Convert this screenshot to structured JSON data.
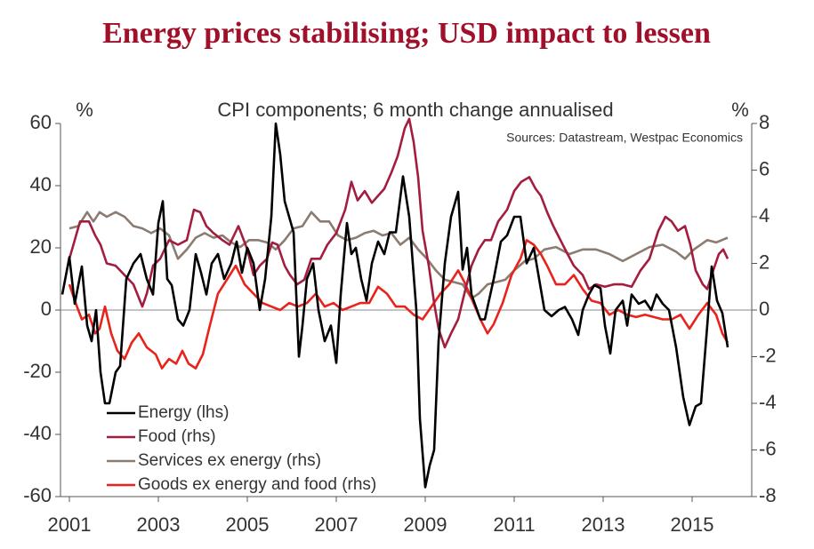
{
  "chart_data": {
    "type": "line",
    "title": "Energy prices stabilising; USD impact to lessen",
    "subtitle": "CPI components; 6 month change annualised",
    "y_label": "%",
    "y2_label": "%",
    "source": "Sources: Datastream, Westpac Economics",
    "xlim": [
      2000.8,
      2016.34
    ],
    "xticks": [
      2001,
      2003,
      2005,
      2007,
      2009,
      2011,
      2013,
      2015
    ],
    "ylim": [
      -60,
      60
    ],
    "yticks": [
      -60,
      -40,
      -20,
      0,
      20,
      40,
      60
    ],
    "y2lim": [
      -8,
      8
    ],
    "y2ticks": [
      -8,
      -6,
      -4,
      -2,
      0,
      2,
      4,
      6,
      8
    ],
    "legend": "lower left",
    "series": [
      {
        "name": "Energy (lhs)",
        "color": "#000000",
        "axis": "y",
        "x": [
          2000.84,
          2001,
          2001.12,
          2001.28,
          2001.4,
          2001.5,
          2001.6,
          2001.7,
          2001.8,
          2001.9,
          2002.04,
          2002.14,
          2002.28,
          2002.44,
          2002.6,
          2002.74,
          2002.88,
          2003,
          2003.1,
          2003.2,
          2003.3,
          2003.44,
          2003.56,
          2003.7,
          2003.84,
          2003.96,
          2004.08,
          2004.2,
          2004.34,
          2004.48,
          2004.64,
          2004.76,
          2004.88,
          2005,
          2005.14,
          2005.28,
          2005.4,
          2005.54,
          2005.64,
          2005.74,
          2005.84,
          2005.94,
          2006.04,
          2006.16,
          2006.24,
          2006.34,
          2006.48,
          2006.6,
          2006.74,
          2006.88,
          2007,
          2007.1,
          2007.24,
          2007.34,
          2007.44,
          2007.56,
          2007.68,
          2007.8,
          2007.94,
          2008.08,
          2008.2,
          2008.34,
          2008.5,
          2008.64,
          2008.8,
          2008.88,
          2009,
          2009.1,
          2009.2,
          2009.3,
          2009.44,
          2009.58,
          2009.74,
          2009.84,
          2009.94,
          2010.04,
          2010.24,
          2010.34,
          2010.54,
          2010.7,
          2010.84,
          2011,
          2011.14,
          2011.28,
          2011.44,
          2011.56,
          2011.68,
          2011.84,
          2012,
          2012.14,
          2012.3,
          2012.44,
          2012.54,
          2012.68,
          2012.8,
          2012.94,
          2013.04,
          2013.16,
          2013.28,
          2013.44,
          2013.54,
          2013.64,
          2013.8,
          2013.94,
          2014.08,
          2014.2,
          2014.34,
          2014.48,
          2014.64,
          2014.8,
          2014.94,
          2015.08,
          2015.2,
          2015.34,
          2015.44,
          2015.56,
          2015.68,
          2015.8
        ],
        "values": [
          5,
          17,
          2,
          14,
          -5,
          -10,
          0,
          -20,
          -30,
          -30,
          -20,
          -18,
          10,
          15,
          18,
          10,
          5,
          28,
          35,
          10,
          8,
          -3,
          -5,
          0,
          18,
          12,
          5,
          15,
          18,
          10,
          15,
          22,
          12,
          20,
          15,
          0,
          10,
          30,
          60,
          50,
          35,
          30,
          25,
          -15,
          -5,
          10,
          15,
          0,
          -10,
          -5,
          -17,
          5,
          28,
          18,
          20,
          10,
          3,
          15,
          22,
          18,
          25,
          25,
          43,
          30,
          0,
          -35,
          -57,
          -50,
          -45,
          -10,
          15,
          30,
          38,
          13,
          20,
          5,
          -3,
          -3,
          10,
          22,
          24,
          30,
          30,
          15,
          20,
          10,
          0,
          -2,
          0,
          1,
          -3,
          -8,
          0,
          5,
          8,
          7,
          -5,
          -14,
          0,
          3,
          -5,
          5,
          2,
          3,
          0,
          5,
          2,
          0,
          -12,
          -28,
          -37,
          -31,
          -30,
          -5,
          14,
          3,
          -1,
          -12
        ]
      },
      {
        "name": "Food (rhs)",
        "color": "#a31d3f",
        "axis": "y2",
        "x": [
          2001,
          2001.24,
          2001.44,
          2001.58,
          2001.7,
          2001.84,
          2002.04,
          2002.24,
          2002.44,
          2002.64,
          2002.74,
          2002.88,
          2003.04,
          2003.24,
          2003.44,
          2003.64,
          2003.8,
          2003.94,
          2004.08,
          2004.24,
          2004.44,
          2004.6,
          2004.8,
          2005,
          2005.14,
          2005.28,
          2005.44,
          2005.56,
          2005.68,
          2005.84,
          2005.96,
          2006.12,
          2006.28,
          2006.44,
          2006.64,
          2006.8,
          2007,
          2007.2,
          2007.34,
          2007.48,
          2007.64,
          2007.8,
          2007.94,
          2008.08,
          2008.24,
          2008.38,
          2008.54,
          2008.64,
          2008.74,
          2008.84,
          2008.94,
          2009.08,
          2009.2,
          2009.3,
          2009.44,
          2009.58,
          2009.74,
          2009.88,
          2010.04,
          2010.2,
          2010.34,
          2010.48,
          2010.64,
          2010.84,
          2011,
          2011.16,
          2011.34,
          2011.48,
          2011.6,
          2011.74,
          2011.88,
          2012.04,
          2012.2,
          2012.34,
          2012.54,
          2012.68,
          2012.84,
          2013.04,
          2013.24,
          2013.44,
          2013.64,
          2013.84,
          2014.04,
          2014.24,
          2014.4,
          2014.54,
          2014.68,
          2014.84,
          2014.96,
          2015.08,
          2015.24,
          2015.34,
          2015.44,
          2015.6,
          2015.7,
          2015.8
        ],
        "values": [
          2.2,
          3.8,
          3.8,
          3.2,
          2.8,
          2.0,
          1.9,
          1.5,
          1.1,
          0.15,
          0.7,
          1.9,
          2.2,
          3.0,
          2.8,
          3.0,
          4.3,
          4.2,
          3.6,
          3.3,
          3.0,
          2.8,
          3.6,
          2.6,
          1.5,
          1.9,
          2.2,
          2.9,
          2.8,
          1.9,
          1.5,
          1.1,
          1.3,
          2.2,
          2.2,
          2.8,
          3.3,
          4.3,
          5.5,
          4.7,
          5.1,
          4.6,
          4.9,
          5.2,
          5.9,
          6.6,
          7.8,
          8.2,
          7.2,
          5.7,
          3.4,
          1.9,
          0.3,
          -0.8,
          -1.6,
          -1.0,
          -0.4,
          0.7,
          1.9,
          2.6,
          3.0,
          3.0,
          3.8,
          4.3,
          5.1,
          5.5,
          5.7,
          5.2,
          4.9,
          4.2,
          3.6,
          3.0,
          2.4,
          1.9,
          1.5,
          0.9,
          1.1,
          1.0,
          1.1,
          1.1,
          1.0,
          1.7,
          2.2,
          3.4,
          4.0,
          3.8,
          3.4,
          3.6,
          2.8,
          1.7,
          1.1,
          0.9,
          1.5,
          2.4,
          2.6,
          2.2
        ]
      },
      {
        "name": "Services ex energy (rhs)",
        "color": "#8c7b70",
        "axis": "y2",
        "x": [
          2001,
          2001.2,
          2001.4,
          2001.54,
          2001.68,
          2001.84,
          2002.04,
          2002.24,
          2002.44,
          2002.64,
          2002.84,
          2003.04,
          2003.24,
          2003.44,
          2003.64,
          2003.84,
          2004.04,
          2004.24,
          2004.44,
          2004.64,
          2004.84,
          2005.04,
          2005.24,
          2005.44,
          2005.64,
          2005.84,
          2006.04,
          2006.24,
          2006.44,
          2006.64,
          2006.84,
          2007.04,
          2007.24,
          2007.44,
          2007.64,
          2007.84,
          2008.04,
          2008.24,
          2008.44,
          2008.64,
          2008.84,
          2009.04,
          2009.24,
          2009.44,
          2009.64,
          2009.84,
          2010.04,
          2010.2,
          2010.4,
          2010.6,
          2010.8,
          2011,
          2011.24,
          2011.44,
          2011.68,
          2011.94,
          2012.24,
          2012.54,
          2012.84,
          2013.14,
          2013.44,
          2013.74,
          2014.04,
          2014.34,
          2014.64,
          2014.84,
          2015.04,
          2015.34,
          2015.54,
          2015.8
        ],
        "values": [
          3.5,
          3.6,
          4.2,
          3.8,
          4.2,
          4.0,
          4.2,
          4.0,
          3.6,
          3.5,
          3.3,
          3.5,
          3.2,
          2.2,
          2.6,
          3.1,
          3.3,
          3.1,
          3.2,
          2.9,
          2.7,
          3.0,
          3.0,
          2.9,
          2.6,
          3.0,
          3.5,
          3.6,
          4.2,
          3.8,
          3.8,
          3.2,
          3.0,
          3.1,
          3.3,
          3.4,
          3.2,
          3.3,
          2.8,
          3.1,
          2.6,
          2.2,
          1.7,
          1.3,
          1.2,
          1.1,
          0.5,
          0.7,
          1.1,
          1.2,
          1.3,
          1.7,
          2.1,
          2.2,
          2.6,
          2.7,
          2.4,
          2.6,
          2.6,
          2.4,
          2.1,
          2.4,
          2.7,
          2.8,
          2.5,
          2.2,
          2.6,
          3.0,
          2.9,
          3.1
        ]
      },
      {
        "name": "Goods ex energy and food (rhs)",
        "color": "#e8231b",
        "axis": "y2",
        "x": [
          2001,
          2001.14,
          2001.28,
          2001.44,
          2001.58,
          2001.68,
          2001.8,
          2001.94,
          2002.08,
          2002.24,
          2002.4,
          2002.56,
          2002.74,
          2002.94,
          2003.08,
          2003.24,
          2003.4,
          2003.54,
          2003.68,
          2003.84,
          2004,
          2004.14,
          2004.34,
          2004.54,
          2004.74,
          2004.94,
          2005.14,
          2005.34,
          2005.54,
          2005.74,
          2005.94,
          2006.14,
          2006.34,
          2006.54,
          2006.74,
          2006.94,
          2007.14,
          2007.34,
          2007.54,
          2007.74,
          2007.94,
          2008.14,
          2008.34,
          2008.54,
          2008.74,
          2008.94,
          2009.14,
          2009.34,
          2009.54,
          2009.74,
          2009.88,
          2010.04,
          2010.24,
          2010.4,
          2010.54,
          2010.74,
          2010.94,
          2011.14,
          2011.28,
          2011.44,
          2011.6,
          2011.74,
          2011.94,
          2012.14,
          2012.34,
          2012.54,
          2012.74,
          2012.94,
          2013.14,
          2013.34,
          2013.54,
          2013.74,
          2013.94,
          2014.14,
          2014.34,
          2014.54,
          2014.74,
          2014.94,
          2015.14,
          2015.34,
          2015.54,
          2015.68,
          2015.8
        ],
        "values": [
          1.1,
          0.3,
          -0.4,
          -0.2,
          -1.0,
          -0.8,
          0.15,
          -1.0,
          -1.75,
          -2.1,
          -1.4,
          -1.0,
          -1.6,
          -1.9,
          -2.5,
          -2.1,
          -2.3,
          -1.75,
          -2.3,
          -2.5,
          -1.9,
          -0.8,
          0.7,
          1.3,
          1.9,
          1.1,
          0.7,
          0.3,
          0.15,
          0,
          0.3,
          0.15,
          0.3,
          0.7,
          0.15,
          0.3,
          0,
          0.15,
          0.3,
          0.3,
          1.0,
          0.7,
          0.15,
          0.15,
          -0.2,
          -0.4,
          0.15,
          0.7,
          1.1,
          1.7,
          1.2,
          0.5,
          -0.4,
          -1.0,
          -0.6,
          0.3,
          1.5,
          2.2,
          3.0,
          2.8,
          2.4,
          1.9,
          1.1,
          1.1,
          1.5,
          0.9,
          0.4,
          0.3,
          -0.2,
          0,
          -0.2,
          -0.3,
          -0.2,
          -0.3,
          -0.4,
          -0.4,
          -0.2,
          -0.8,
          -0.2,
          0.3,
          -0.2,
          -1.0,
          -1.4
        ]
      }
    ]
  }
}
